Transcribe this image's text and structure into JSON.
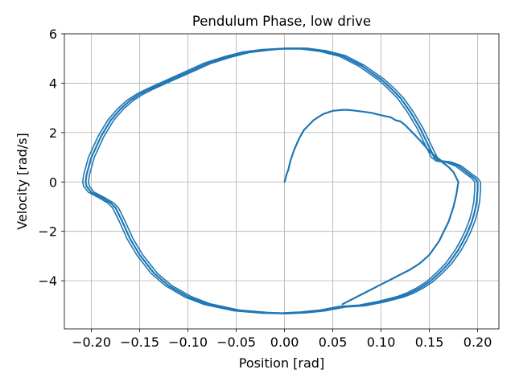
{
  "chart_data": {
    "type": "line",
    "title": "Pendulum Phase, low drive",
    "xlabel": "Position [rad]",
    "ylabel": "Velocity [rad/s]",
    "xlim": [
      -0.228,
      0.222
    ],
    "ylim": [
      -5.95,
      6.0
    ],
    "xticks": [
      -0.2,
      -0.15,
      -0.1,
      -0.05,
      0.0,
      0.05,
      0.1,
      0.15,
      0.2
    ],
    "xtick_labels": [
      "−0.20",
      "−0.15",
      "−0.10",
      "−0.05",
      "0.00",
      "0.05",
      "0.10",
      "0.15",
      "0.20"
    ],
    "yticks": [
      -4,
      -2,
      0,
      2,
      4,
      6
    ],
    "ytick_labels": [
      "−4",
      "−2",
      "0",
      "2",
      "4",
      "6"
    ],
    "grid": true,
    "line_color": "#1f77b4",
    "series": [
      {
        "name": "",
        "description": "transient",
        "x": [
          0.0,
          0.002,
          0.004,
          0.006,
          0.01,
          0.015,
          0.02,
          0.03,
          0.04,
          0.05,
          0.06,
          0.065,
          0.07,
          0.08,
          0.09,
          0.1,
          0.11,
          0.115,
          0.12,
          0.125,
          0.13,
          0.14,
          0.15,
          0.16,
          0.17,
          0.175,
          0.18,
          0.178,
          0.175,
          0.17,
          0.16,
          0.15,
          0.14,
          0.13,
          0.12,
          0.11,
          0.1,
          0.09,
          0.08,
          0.07,
          0.06
        ],
        "y": [
          0.0,
          0.3,
          0.5,
          0.85,
          1.3,
          1.75,
          2.1,
          2.5,
          2.75,
          2.88,
          2.92,
          2.92,
          2.9,
          2.85,
          2.8,
          2.7,
          2.62,
          2.5,
          2.45,
          2.3,
          2.1,
          1.7,
          1.25,
          0.9,
          0.6,
          0.4,
          0.0,
          -0.5,
          -1.0,
          -1.6,
          -2.4,
          -2.95,
          -3.3,
          -3.55,
          -3.75,
          -3.95,
          -4.15,
          -4.35,
          -4.55,
          -4.75,
          -4.95
        ]
      },
      {
        "name": "",
        "description": "limit cycle",
        "x": [
          0.06,
          0.04,
          0.02,
          0.0,
          -0.02,
          -0.05,
          -0.08,
          -0.1,
          -0.12,
          -0.135,
          -0.15,
          -0.16,
          -0.168,
          -0.175,
          -0.18,
          -0.19,
          -0.2,
          -0.205,
          -0.206,
          -0.205,
          -0.2,
          -0.19,
          -0.18,
          -0.17,
          -0.16,
          -0.15,
          -0.14,
          -0.12,
          -0.1,
          -0.08,
          -0.06,
          -0.04,
          -0.02,
          0.0,
          0.02,
          0.04,
          0.06,
          0.08,
          0.1,
          0.11,
          0.12,
          0.13,
          0.14,
          0.15,
          0.155,
          0.16,
          0.17,
          0.18,
          0.19,
          0.197,
          0.2,
          0.2,
          0.199,
          0.197,
          0.194,
          0.19,
          0.185,
          0.18,
          0.17,
          0.16,
          0.15,
          0.14,
          0.13,
          0.12,
          0.1,
          0.08,
          0.06
        ],
        "y": [
          -5.05,
          -5.2,
          -5.28,
          -5.32,
          -5.3,
          -5.2,
          -4.95,
          -4.65,
          -4.2,
          -3.7,
          -2.95,
          -2.3,
          -1.6,
          -1.05,
          -0.85,
          -0.62,
          -0.42,
          -0.18,
          0.0,
          0.3,
          1.0,
          1.85,
          2.5,
          2.95,
          3.3,
          3.55,
          3.75,
          4.1,
          4.45,
          4.8,
          5.05,
          5.25,
          5.35,
          5.4,
          5.4,
          5.3,
          5.1,
          4.7,
          4.15,
          3.8,
          3.4,
          2.85,
          2.2,
          1.4,
          1.0,
          0.85,
          0.8,
          0.65,
          0.35,
          0.15,
          0.0,
          -0.3,
          -0.8,
          -1.2,
          -1.6,
          -2.0,
          -2.4,
          -2.75,
          -3.3,
          -3.7,
          -4.05,
          -4.3,
          -4.5,
          -4.65,
          -4.85,
          -5.0,
          -5.05
        ]
      }
    ]
  }
}
